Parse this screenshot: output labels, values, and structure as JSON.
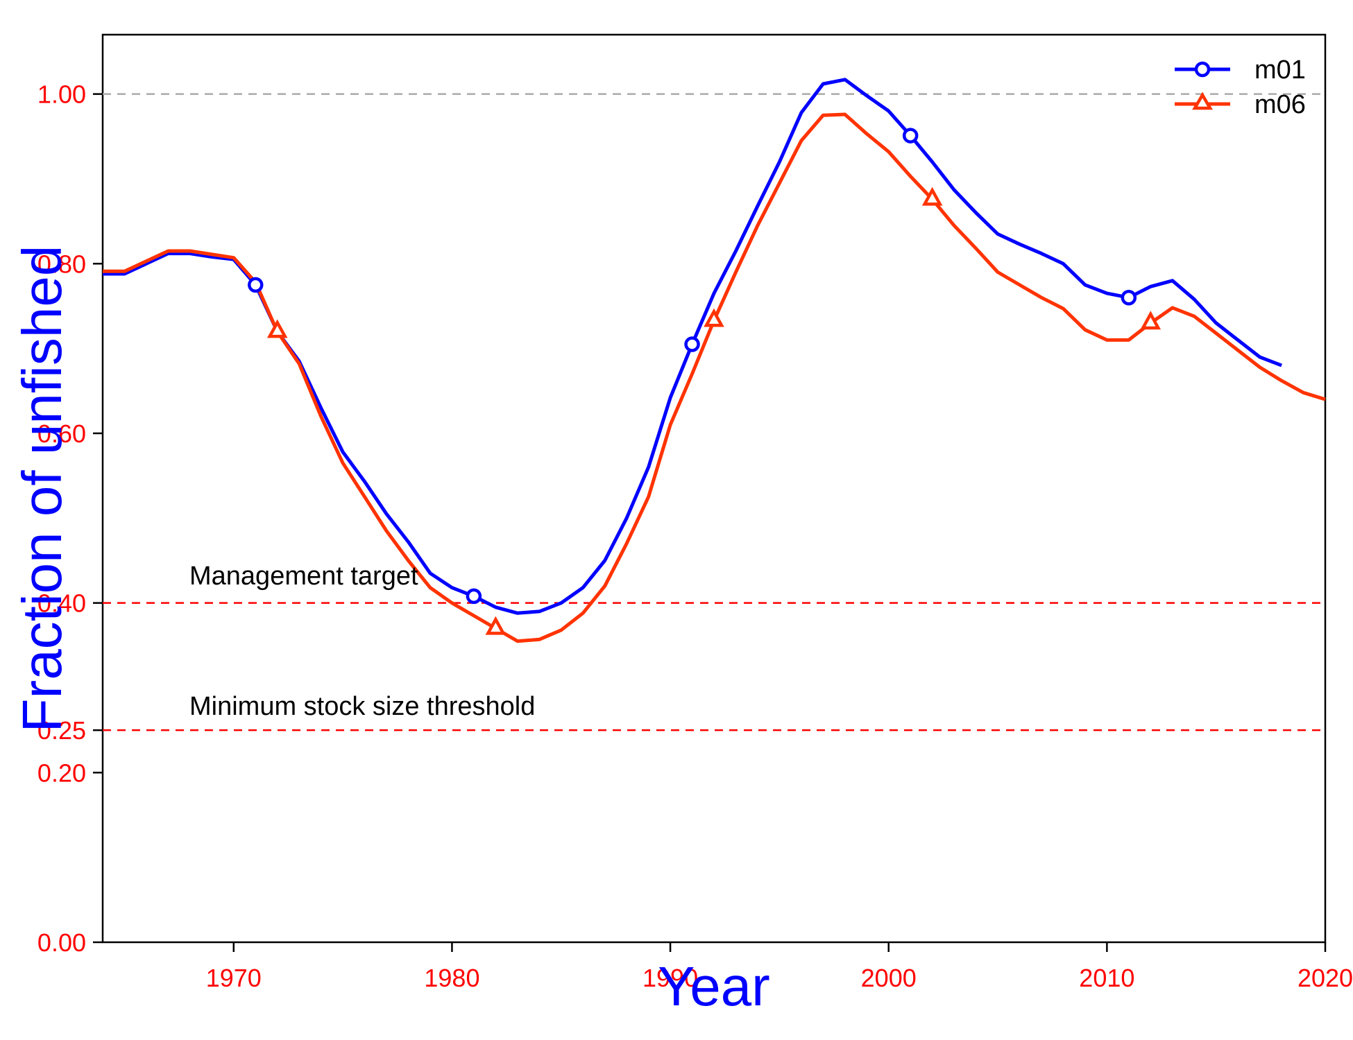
{
  "chart_data": {
    "type": "line",
    "title": "",
    "xlabel": "Year",
    "ylabel": "Fraction of unfished",
    "xlim": [
      1964,
      2020
    ],
    "ylim": [
      0,
      1.07
    ],
    "x_ticks": [
      1970,
      1980,
      1990,
      2000,
      2010,
      2020
    ],
    "x_tick_labels": [
      "1970",
      "1980",
      "1990",
      "2000",
      "2010",
      "2020"
    ],
    "y_ticks": [
      0,
      0.2,
      0.25,
      0.4,
      0.6,
      0.8,
      1.0
    ],
    "y_tick_labels": [
      "0.00",
      "0.20",
      "0.25",
      "0.40",
      "0.60",
      "0.80",
      "1.00"
    ],
    "grid": false,
    "legend_position": "top-right",
    "reference_lines": [
      {
        "name": "unfished",
        "y": 1.0,
        "color": "#aaaaaa",
        "style": "dashed",
        "label": ""
      },
      {
        "name": "management-target",
        "y": 0.4,
        "color": "#ff0000",
        "style": "dashed",
        "label": "Management target"
      },
      {
        "name": "minimum-stock-size-threshold",
        "y": 0.25,
        "color": "#ff0000",
        "style": "dashed",
        "label": "Minimum stock size threshold"
      }
    ],
    "series": [
      {
        "name": "m01",
        "color": "#0000ff",
        "marker": "circle",
        "marker_years": [
          1971,
          1981,
          1991,
          2001,
          2011
        ],
        "x": [
          1964,
          1965,
          1966,
          1967,
          1968,
          1969,
          1970,
          1971,
          1972,
          1973,
          1974,
          1975,
          1976,
          1977,
          1978,
          1979,
          1980,
          1981,
          1982,
          1983,
          1984,
          1985,
          1986,
          1987,
          1988,
          1989,
          1990,
          1991,
          1992,
          1993,
          1994,
          1995,
          1996,
          1997,
          1998,
          1999,
          2000,
          2001,
          2002,
          2003,
          2004,
          2005,
          2006,
          2007,
          2008,
          2009,
          2010,
          2011,
          2012,
          2013,
          2014,
          2015,
          2016,
          2017,
          2018
        ],
        "values": [
          0.788,
          0.788,
          0.8,
          0.812,
          0.812,
          0.808,
          0.805,
          0.775,
          0.72,
          0.685,
          0.63,
          0.578,
          0.543,
          0.505,
          0.472,
          0.435,
          0.418,
          0.408,
          0.395,
          0.388,
          0.39,
          0.4,
          0.418,
          0.45,
          0.5,
          0.56,
          0.642,
          0.705,
          0.765,
          0.815,
          0.868,
          0.92,
          0.978,
          1.012,
          1.017,
          0.998,
          0.98,
          0.951,
          0.92,
          0.887,
          0.86,
          0.835,
          0.823,
          0.812,
          0.8,
          0.775,
          0.765,
          0.76,
          0.773,
          0.78,
          0.758,
          0.73,
          0.71,
          0.69,
          0.68
        ]
      },
      {
        "name": "m06",
        "color": "#ff3300",
        "marker": "triangle",
        "marker_years": [
          1972,
          1982,
          1992,
          2002,
          2012
        ],
        "x": [
          1964,
          1965,
          1966,
          1967,
          1968,
          1969,
          1970,
          1971,
          1972,
          1973,
          1974,
          1975,
          1976,
          1977,
          1978,
          1979,
          1980,
          1981,
          1982,
          1983,
          1984,
          1985,
          1986,
          1987,
          1988,
          1989,
          1990,
          1991,
          1992,
          1993,
          1994,
          1995,
          1996,
          1997,
          1998,
          1999,
          2000,
          2001,
          2002,
          2003,
          2004,
          2005,
          2006,
          2007,
          2008,
          2009,
          2010,
          2011,
          2012,
          2013,
          2014,
          2015,
          2016,
          2017,
          2018,
          2019,
          2020
        ],
        "values": [
          0.791,
          0.791,
          0.803,
          0.815,
          0.815,
          0.811,
          0.807,
          0.778,
          0.72,
          0.682,
          0.62,
          0.565,
          0.525,
          0.485,
          0.45,
          0.418,
          0.4,
          0.385,
          0.37,
          0.355,
          0.357,
          0.368,
          0.388,
          0.42,
          0.47,
          0.525,
          0.61,
          0.67,
          0.733,
          0.79,
          0.845,
          0.895,
          0.945,
          0.975,
          0.976,
          0.953,
          0.932,
          0.903,
          0.876,
          0.845,
          0.818,
          0.79,
          0.775,
          0.76,
          0.747,
          0.722,
          0.71,
          0.71,
          0.73,
          0.748,
          0.738,
          0.718,
          0.698,
          0.678,
          0.662,
          0.648,
          0.64
        ]
      }
    ]
  }
}
